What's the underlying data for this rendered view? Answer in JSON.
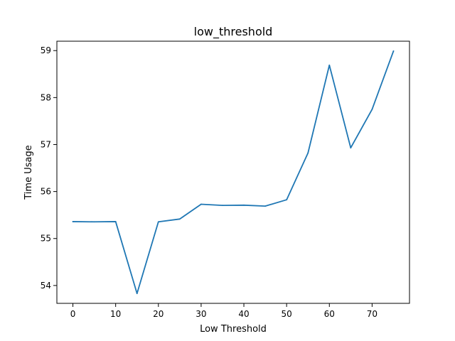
{
  "chart_data": {
    "type": "line",
    "title": "low_threshold",
    "xlabel": "Low Threshold",
    "ylabel": "Time Usage",
    "x": [
      0,
      5,
      10,
      15,
      20,
      25,
      30,
      35,
      40,
      45,
      50,
      55,
      60,
      65,
      70,
      75
    ],
    "series": [
      {
        "values": [
          55.36,
          55.355,
          55.36,
          53.83,
          55.355,
          55.415,
          55.73,
          55.705,
          55.71,
          55.69,
          55.825,
          56.82,
          58.69,
          56.93,
          57.75,
          58.99
        ],
        "color": "#1f77b4"
      }
    ],
    "xticks": [
      0,
      10,
      20,
      30,
      40,
      50,
      60,
      70
    ],
    "yticks": [
      54,
      55,
      56,
      57,
      58,
      59
    ],
    "xlim": [
      -3.75,
      78.75
    ],
    "ylim": [
      53.62,
      59.2
    ],
    "grid": false,
    "legend": "none"
  }
}
